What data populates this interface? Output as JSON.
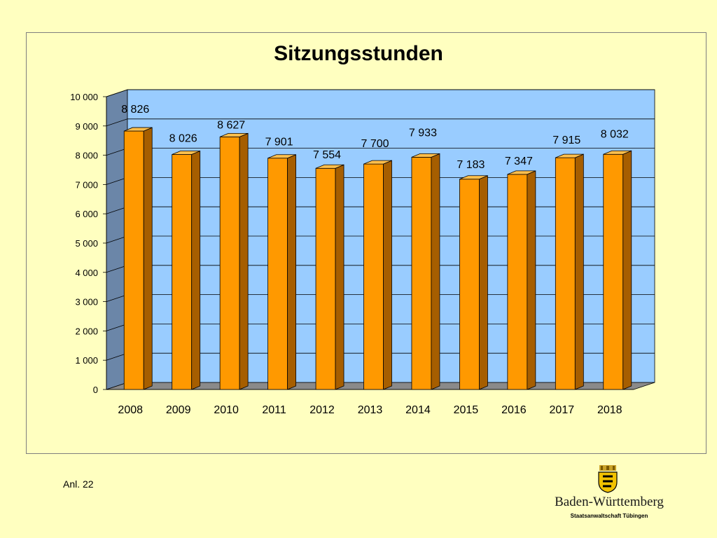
{
  "chart_data": {
    "type": "bar",
    "title": "Sitzungsstunden",
    "categories": [
      "2008",
      "2009",
      "2010",
      "2011",
      "2012",
      "2013",
      "2014",
      "2015",
      "2016",
      "2017",
      "2018"
    ],
    "values": [
      8826,
      8026,
      8627,
      7901,
      7554,
      7700,
      7933,
      7183,
      7347,
      7915,
      8032
    ],
    "data_labels": [
      "8 826",
      "8 026",
      "8 627",
      "7 901",
      "7 554",
      "7 700",
      "7 933",
      "7 183",
      "7 347",
      "7 915",
      "8 032"
    ],
    "ylim": [
      0,
      10000
    ],
    "yticks": [
      0,
      1000,
      2000,
      3000,
      4000,
      5000,
      6000,
      7000,
      8000,
      9000,
      10000
    ],
    "ytick_labels": [
      "0",
      "1 000",
      "2 000",
      "3 000",
      "4 000",
      "5 000",
      "6 000",
      "7 000",
      "8 000",
      "9 000",
      "10 000"
    ],
    "xlabel": "",
    "ylabel": "",
    "grid": true,
    "legend": "none",
    "style": "3d-bar",
    "colors": {
      "bar_front": "#ff9900",
      "bar_side": "#a65e00",
      "bar_top": "#ffbf4d",
      "back_wall": "#99ccff",
      "side_wall": "#6b86a8",
      "floor": "#8a8a8a",
      "background": "#ffffc0"
    }
  },
  "footnote": "Anl. 22",
  "logo": {
    "name": "Baden-Württemberg",
    "subtitle": "Staatsanwaltschaft Tübingen",
    "emblem": "coat-of-arms-icon"
  }
}
